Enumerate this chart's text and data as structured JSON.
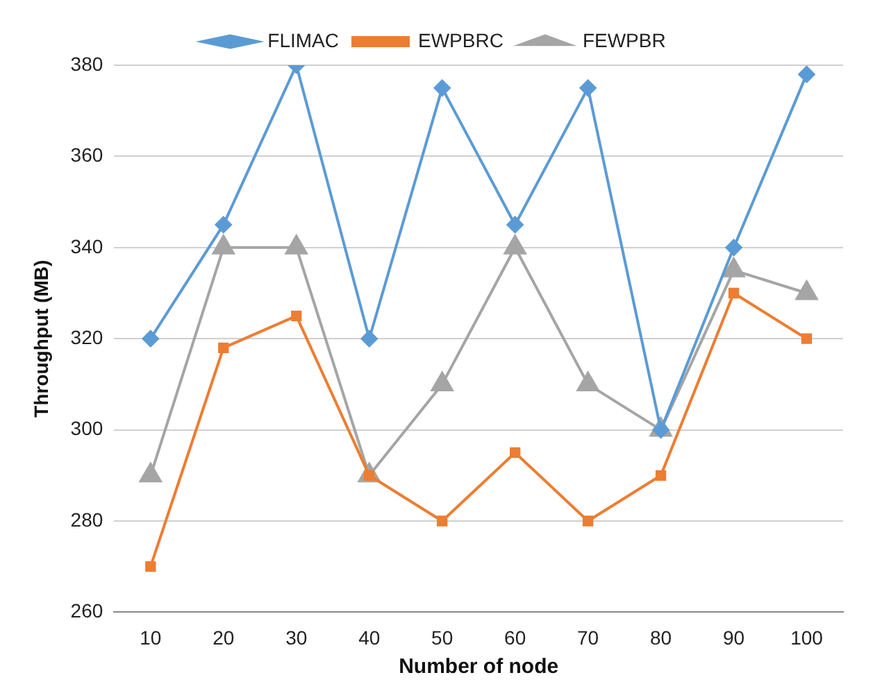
{
  "chart_data": {
    "type": "line",
    "xlabel": "Number of node",
    "ylabel": "Throughput (MB)",
    "categories": [
      "10",
      "20",
      "30",
      "40",
      "50",
      "60",
      "70",
      "80",
      "90",
      "100"
    ],
    "series": [
      {
        "name": "FLIMAC",
        "color": "#5b9bd5",
        "marker": "diamond",
        "values": [
          320,
          345,
          380,
          320,
          375,
          345,
          375,
          300,
          340,
          378
        ]
      },
      {
        "name": "EWPBRC",
        "color": "#ed7d31",
        "marker": "square",
        "values": [
          270,
          318,
          325,
          290,
          280,
          295,
          280,
          290,
          330,
          320
        ]
      },
      {
        "name": "FEWPBR",
        "color": "#a5a5a5",
        "marker": "triangle",
        "values": [
          290,
          340,
          340,
          290,
          310,
          340,
          310,
          300,
          335,
          330
        ]
      }
    ],
    "ylim": [
      260,
      380
    ],
    "yticks": [
      260,
      280,
      300,
      320,
      340,
      360,
      380
    ],
    "grid": "y",
    "legend": "top"
  }
}
